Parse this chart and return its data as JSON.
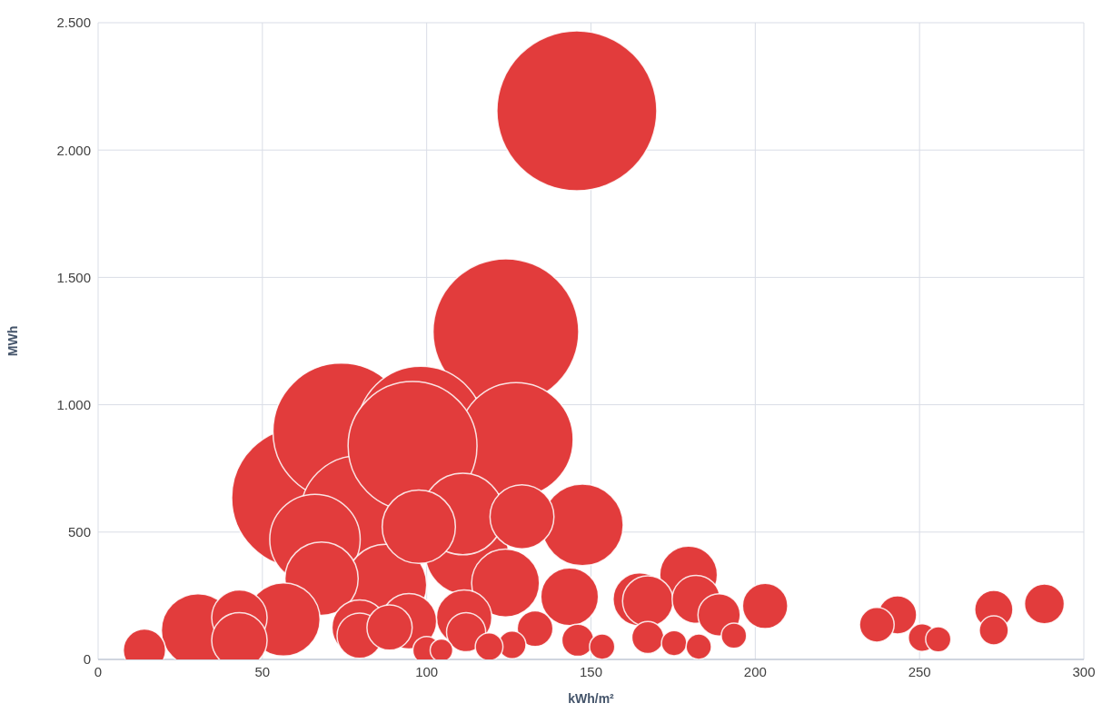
{
  "chart_data": {
    "type": "bubble",
    "xlabel": "kWh/m²",
    "ylabel": "MWh",
    "xlim": [
      0,
      300
    ],
    "xticks": [
      0,
      50,
      100,
      150,
      200,
      250,
      300
    ],
    "ylim": [
      0,
      2500
    ],
    "yticks": [
      {
        "value": 0,
        "label": "0"
      },
      {
        "value": 500,
        "label": "500"
      },
      {
        "value": 1000,
        "label": "1.000"
      },
      {
        "value": 1500,
        "label": "1.500"
      },
      {
        "value": 2000,
        "label": "2.000"
      },
      {
        "value": 2500,
        "label": "2.500"
      }
    ],
    "grid": true,
    "series": [
      {
        "color": "#e23c3c",
        "x": [
          145.7,
          124.1,
          62,
          74,
          98.2,
          79.3,
          127.2,
          95.7,
          66,
          112.2,
          111,
          147.4,
          87.6,
          97.6,
          68,
          56.4,
          30.4,
          124,
          129,
          143.5,
          179.7,
          79.6,
          111.4,
          43,
          43,
          94.6,
          164.8,
          167.3,
          182,
          79.6,
          88.7,
          203,
          14.1,
          189,
          288,
          112,
          243.3,
          272.6,
          133,
          237,
          146,
          167.3,
          272.6,
          126,
          100,
          119,
          250.8,
          153.4,
          175.3,
          182.8,
          193.5,
          255.7,
          104.5
        ],
        "values": [
          2154,
          1287,
          635,
          895,
          902,
          571,
          863,
          838,
          471,
          417,
          571,
          528,
          292,
          521,
          317,
          157,
          114,
          300,
          560,
          246,
          332,
          125,
          164,
          164,
          75,
          150,
          236,
          229,
          236,
          93,
          125,
          210,
          36,
          175,
          218,
          107,
          175,
          196,
          121,
          136,
          75,
          86,
          114,
          57,
          36,
          50,
          86,
          50,
          64,
          50,
          93,
          79,
          36
        ],
        "sizes": [
          1,
          0.83,
          0.77,
          0.73,
          0.63,
          0.53,
          0.51,
          0.65,
          0.32,
          0.27,
          0.26,
          0.26,
          0.26,
          0.21,
          0.21,
          0.21,
          0.21,
          0.18,
          0.16,
          0.13,
          0.13,
          0.12,
          0.12,
          0.12,
          0.12,
          0.12,
          0.11,
          0.1,
          0.09,
          0.08,
          0.08,
          0.08,
          0.07,
          0.07,
          0.062,
          0.06,
          0.057,
          0.057,
          0.05,
          0.047,
          0.04,
          0.04,
          0.033,
          0.03,
          0.03,
          0.03,
          0.03,
          0.025,
          0.025,
          0.025,
          0.025,
          0.025,
          0.02
        ]
      }
    ]
  }
}
